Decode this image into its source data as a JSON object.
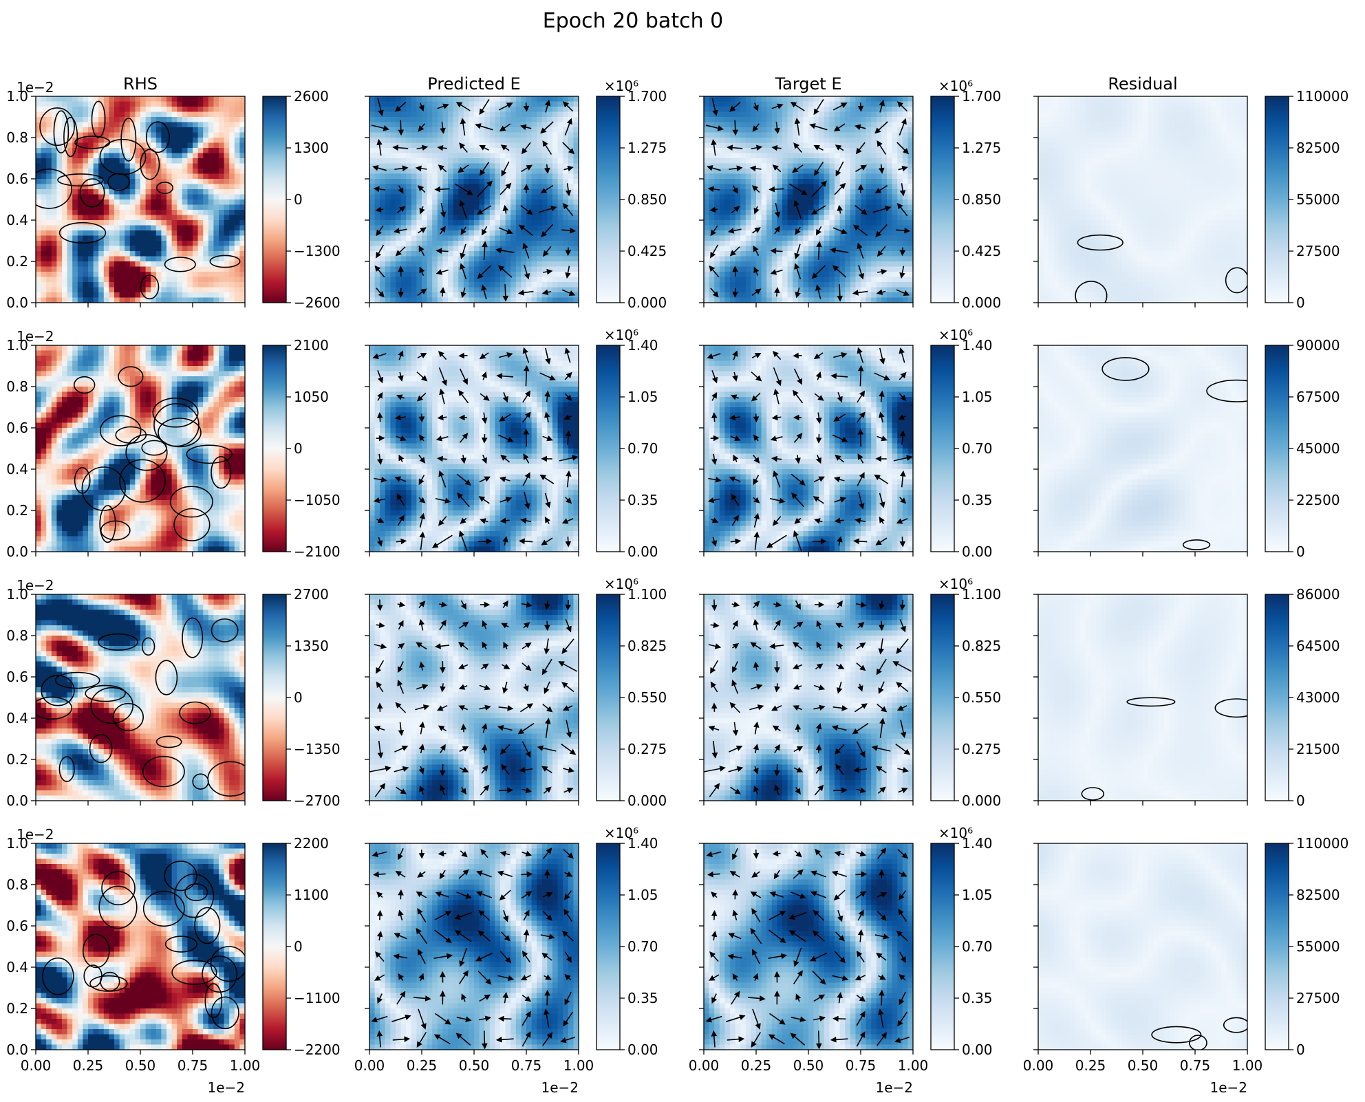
{
  "figure": {
    "title": "Epoch 20 batch 0",
    "column_titles": [
      "RHS",
      "Predicted E",
      "Target E",
      "Residual"
    ],
    "axis_ticks": [
      "0.0",
      "0.2",
      "0.4",
      "0.6",
      "0.8",
      "1.0"
    ],
    "x_axis_ticks": [
      "0.00",
      "0.25",
      "0.50",
      "0.75",
      "1.00"
    ],
    "offset_label": "1e−2",
    "colorbar_offset_label": "×10⁶"
  },
  "colors": {
    "rhs_colormap": "RdBu",
    "field_colormap": "Blues",
    "contour": "#000000",
    "arrow": "#000000"
  },
  "chart_data": [
    {
      "type": "heatmap",
      "row": 0,
      "column": "RHS",
      "ylim": [
        0.0,
        1.0
      ],
      "xlim": [
        0.0,
        1.0
      ],
      "colorbar_range": [
        -2600,
        2600
      ],
      "colorbar_ticks": [
        "−2600",
        "−1300",
        "0",
        "1300",
        "2600"
      ],
      "contours": true
    },
    {
      "type": "heatmap",
      "row": 0,
      "column": "Predicted E",
      "colorbar_range": [
        0.0,
        1.7
      ],
      "colorbar_ticks": [
        "0.000",
        "0.425",
        "0.850",
        "1.275",
        "1.700"
      ],
      "colorbar_scale": "×10⁶",
      "quiver": true
    },
    {
      "type": "heatmap",
      "row": 0,
      "column": "Target E",
      "colorbar_range": [
        0.0,
        1.7
      ],
      "colorbar_ticks": [
        "0.000",
        "0.425",
        "0.850",
        "1.275",
        "1.700"
      ],
      "colorbar_scale": "×10⁶",
      "quiver": true
    },
    {
      "type": "heatmap",
      "row": 0,
      "column": "Residual",
      "colorbar_range": [
        0,
        110000
      ],
      "colorbar_ticks": [
        "0",
        "27500",
        "55000",
        "82500",
        "110000"
      ],
      "contours": true
    },
    {
      "type": "heatmap",
      "row": 1,
      "column": "RHS",
      "colorbar_range": [
        -2100,
        2100
      ],
      "colorbar_ticks": [
        "−2100",
        "−1050",
        "0",
        "1050",
        "2100"
      ],
      "contours": true
    },
    {
      "type": "heatmap",
      "row": 1,
      "column": "Predicted E",
      "colorbar_range": [
        0.0,
        1.4
      ],
      "colorbar_ticks": [
        "0.00",
        "0.35",
        "0.70",
        "1.05",
        "1.40"
      ],
      "colorbar_scale": "×10⁶",
      "quiver": true
    },
    {
      "type": "heatmap",
      "row": 1,
      "column": "Target E",
      "colorbar_range": [
        0.0,
        1.4
      ],
      "colorbar_ticks": [
        "0.00",
        "0.35",
        "0.70",
        "1.05",
        "1.40"
      ],
      "colorbar_scale": "×10⁶",
      "quiver": true
    },
    {
      "type": "heatmap",
      "row": 1,
      "column": "Residual",
      "colorbar_range": [
        0,
        90000
      ],
      "colorbar_ticks": [
        "0",
        "22500",
        "45000",
        "67500",
        "90000"
      ],
      "contours": true
    },
    {
      "type": "heatmap",
      "row": 2,
      "column": "RHS",
      "colorbar_range": [
        -2700,
        2700
      ],
      "colorbar_ticks": [
        "−2700",
        "−1350",
        "0",
        "1350",
        "2700"
      ],
      "contours": true
    },
    {
      "type": "heatmap",
      "row": 2,
      "column": "Predicted E",
      "colorbar_range": [
        0.0,
        1.1
      ],
      "colorbar_ticks": [
        "0.000",
        "0.275",
        "0.550",
        "0.825",
        "1.100"
      ],
      "colorbar_scale": "×10⁶",
      "quiver": true
    },
    {
      "type": "heatmap",
      "row": 2,
      "column": "Target E",
      "colorbar_range": [
        0.0,
        1.1
      ],
      "colorbar_ticks": [
        "0.000",
        "0.275",
        "0.550",
        "0.825",
        "1.100"
      ],
      "colorbar_scale": "×10⁶",
      "quiver": true
    },
    {
      "type": "heatmap",
      "row": 2,
      "column": "Residual",
      "colorbar_range": [
        0,
        86000
      ],
      "colorbar_ticks": [
        "0",
        "21500",
        "43000",
        "64500",
        "86000"
      ],
      "contours": true
    },
    {
      "type": "heatmap",
      "row": 3,
      "column": "RHS",
      "colorbar_range": [
        -2200,
        2200
      ],
      "colorbar_ticks": [
        "−2200",
        "−1100",
        "0",
        "1100",
        "2200"
      ],
      "contours": true
    },
    {
      "type": "heatmap",
      "row": 3,
      "column": "Predicted E",
      "colorbar_range": [
        0.0,
        1.4
      ],
      "colorbar_ticks": [
        "0.00",
        "0.35",
        "0.70",
        "1.05",
        "1.40"
      ],
      "colorbar_scale": "×10⁶",
      "quiver": true
    },
    {
      "type": "heatmap",
      "row": 3,
      "column": "Target E",
      "colorbar_range": [
        0.0,
        1.4
      ],
      "colorbar_ticks": [
        "0.00",
        "0.35",
        "0.70",
        "1.05",
        "1.40"
      ],
      "colorbar_scale": "×10⁶",
      "quiver": true
    },
    {
      "type": "heatmap",
      "row": 3,
      "column": "Residual",
      "colorbar_range": [
        0,
        110000
      ],
      "colorbar_ticks": [
        "0",
        "27500",
        "55000",
        "82500",
        "110000"
      ],
      "contours": true
    }
  ]
}
